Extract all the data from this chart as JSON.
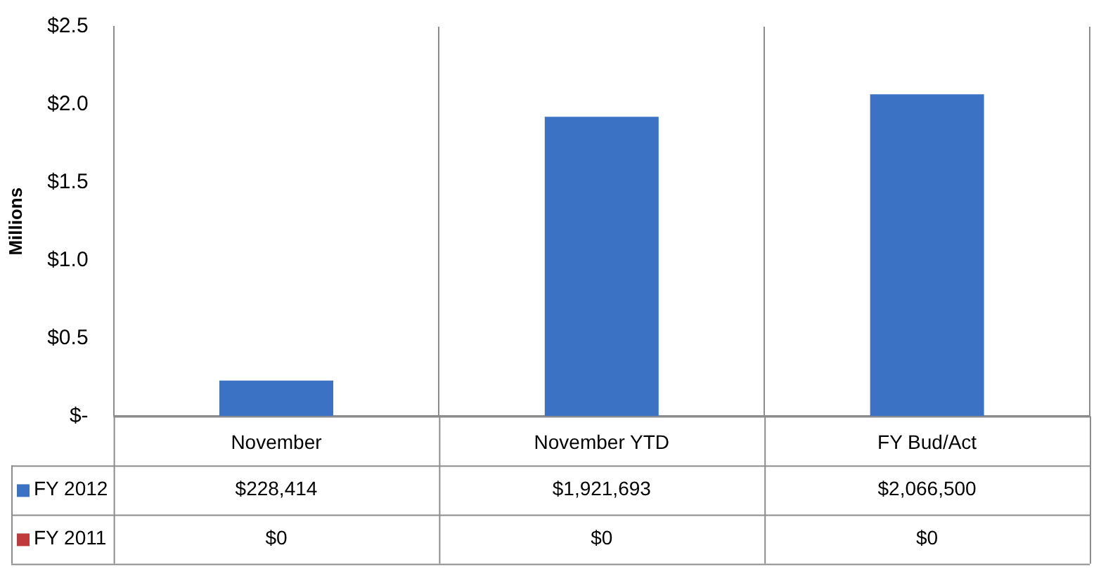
{
  "chart_data": {
    "type": "bar",
    "categories": [
      "November",
      "November YTD",
      "FY Bud/Act"
    ],
    "series": [
      {
        "name": "FY 2012",
        "color": "#3b72c4",
        "values": [
          0.228414,
          1.921693,
          2.0665
        ]
      },
      {
        "name": "FY 2011",
        "color": "#c0393b",
        "values": [
          0,
          0,
          0
        ]
      }
    ],
    "annotations": [
      "$228,414",
      "$1,921,693",
      "$2,066,500",
      "$0",
      "$0",
      "$0"
    ],
    "ylabel": "Millions",
    "ylim": [
      0,
      2.5
    ],
    "yticks": [
      {
        "value": 0,
        "label": "$-"
      },
      {
        "value": 0.5,
        "label": "$0.5"
      },
      {
        "value": 1,
        "label": "$1.0"
      },
      {
        "value": 1.5,
        "label": "$1.5"
      },
      {
        "value": 2,
        "label": "$2.0"
      },
      {
        "value": 2.5,
        "label": "$2.5"
      }
    ],
    "grid": "x",
    "legend": "bottom left"
  }
}
